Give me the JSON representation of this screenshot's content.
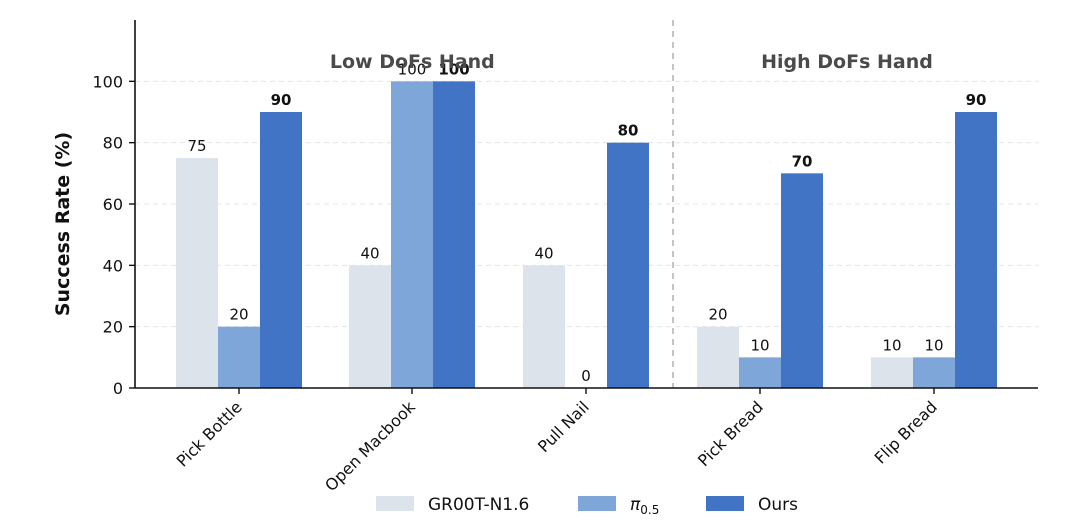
{
  "chart_data": {
    "type": "bar",
    "ylabel": "Success Rate (%)",
    "xlabel": "",
    "ylim": [
      0,
      120
    ],
    "yticks": [
      0,
      20,
      40,
      60,
      80,
      100
    ],
    "grid": true,
    "categories": [
      "Pick Bottle",
      "Open Macbook",
      "Pull Nail",
      "Pick Bread",
      "Flip Bread"
    ],
    "series": [
      {
        "name": "GR00T-N1.6",
        "color": "#dde3ea",
        "values": [
          75,
          40,
          40,
          20,
          10
        ]
      },
      {
        "name": "π0.5",
        "legend_base": "π",
        "legend_sub": "0.5",
        "color": "#7ea6d8",
        "values": [
          20,
          100,
          0,
          10,
          10
        ]
      },
      {
        "name": "Ours",
        "color": "#4174c4",
        "values": [
          90,
          100,
          80,
          70,
          90
        ]
      }
    ],
    "bold_series": "Ours",
    "groups": [
      {
        "label": "Low DoFs Hand",
        "categories": [
          "Pick Bottle",
          "Open Macbook",
          "Pull Nail"
        ]
      },
      {
        "label": "High DoFs Hand",
        "categories": [
          "Pick Bread",
          "Flip Bread"
        ]
      }
    ],
    "legend_position": "bottom-center"
  }
}
